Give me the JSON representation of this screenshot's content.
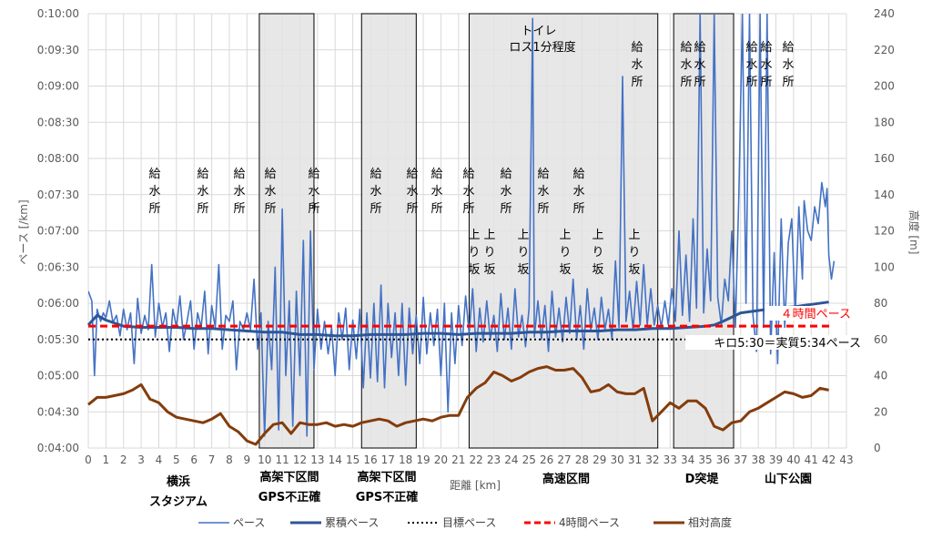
{
  "chart_data": {
    "type": "line",
    "xlabel": "距離 [km]",
    "ylabel_left": "ペース [/km]",
    "ylabel_right": "高度 [m]",
    "xlim": [
      0,
      43
    ],
    "ylim_left_seconds": [
      240,
      600
    ],
    "ylim_right": [
      0,
      240
    ],
    "grid": true,
    "legend_position": "bottom",
    "x_ticks": [
      "0",
      "1",
      "2",
      "3",
      "4",
      "5",
      "6",
      "7",
      "8",
      "9",
      "10",
      "11",
      "12",
      "13",
      "14",
      "15",
      "16",
      "17",
      "18",
      "19",
      "20",
      "21",
      "22",
      "23",
      "24",
      "25",
      "26",
      "27",
      "28",
      "29",
      "30",
      "31",
      "32",
      "33",
      "34",
      "35",
      "36",
      "37",
      "38",
      "39",
      "40",
      "41",
      "42",
      "43"
    ],
    "y_left_ticks": [
      "0:04:00",
      "0:04:30",
      "0:05:00",
      "0:05:30",
      "0:06:00",
      "0:06:30",
      "0:07:00",
      "0:07:30",
      "0:08:00",
      "0:08:30",
      "0:09:00",
      "0:09:30",
      "0:10:00"
    ],
    "y_right_ticks": [
      "0",
      "20",
      "40",
      "60",
      "80",
      "100",
      "120",
      "140",
      "160",
      "180",
      "200",
      "220",
      "240"
    ],
    "series": [
      {
        "name": "ペース",
        "color": "#4472C4",
        "style": "solid-thin"
      },
      {
        "name": "累積ペース",
        "color": "#2F5597",
        "style": "solid-thick",
        "x": [
          0,
          0.5,
          1,
          2,
          3,
          4,
          5,
          6,
          7,
          8,
          9,
          10,
          11,
          12,
          13,
          14,
          15,
          16,
          17,
          18,
          19,
          20,
          21,
          22,
          23,
          24,
          25,
          26,
          27,
          28,
          29,
          30,
          31,
          32,
          33,
          34,
          35,
          35.5,
          36,
          37,
          38,
          39,
          40,
          41,
          42
        ],
        "y_seconds": [
          342,
          350,
          346,
          341,
          340,
          340,
          340,
          339,
          339,
          338,
          337,
          336,
          336,
          334,
          334,
          333,
          333,
          334,
          334,
          334,
          335,
          335,
          334,
          335,
          335,
          335,
          336,
          336,
          337,
          337,
          337,
          338,
          338,
          339,
          339,
          340,
          341,
          342,
          345,
          352,
          354,
          356,
          357,
          359,
          361
        ]
      },
      {
        "name": "目標ペース",
        "color": "#000000",
        "style": "dotted",
        "value_seconds": 330
      },
      {
        "name": "4時間ペース",
        "color": "#FF0000",
        "style": "dashed",
        "value_seconds": 341
      },
      {
        "name": "相対高度",
        "color": "#843C0C",
        "style": "solid-thick",
        "x": [
          0,
          0.5,
          1,
          1.5,
          2,
          2.5,
          3,
          3.5,
          4,
          4.5,
          5,
          5.5,
          6,
          6.5,
          7,
          7.5,
          8,
          8.5,
          9,
          9.5,
          10,
          10.5,
          11,
          11.5,
          12,
          12.5,
          13,
          13.5,
          14,
          14.5,
          15,
          15.5,
          16,
          16.5,
          17,
          17.5,
          18,
          18.5,
          19,
          19.5,
          20,
          20.5,
          21,
          21.5,
          22,
          22.5,
          23,
          23.5,
          24,
          24.5,
          25,
          25.5,
          26,
          26.5,
          27,
          27.5,
          28,
          28.5,
          29,
          29.5,
          30,
          30.5,
          31,
          31.5,
          32,
          32.5,
          33,
          33.5,
          34,
          34.5,
          35,
          35.5,
          36,
          36.5,
          37,
          37.5,
          38,
          38.5,
          39,
          39.5,
          40,
          40.5,
          41,
          41.5,
          42
        ],
        "y": [
          24,
          28,
          28,
          29,
          30,
          32,
          35,
          27,
          25,
          20,
          17,
          16,
          15,
          14,
          16,
          19,
          12,
          9,
          4,
          2,
          8,
          13,
          14,
          8,
          14,
          13,
          13,
          14,
          12,
          13,
          12,
          14,
          15,
          16,
          15,
          12,
          14,
          15,
          16,
          15,
          17,
          18,
          18,
          28,
          33,
          36,
          42,
          40,
          37,
          39,
          42,
          44,
          45,
          43,
          43,
          44,
          39,
          31,
          32,
          35,
          31,
          30,
          30,
          33,
          15,
          20,
          25,
          22,
          26,
          26,
          22,
          12,
          10,
          14,
          15,
          20,
          22,
          25,
          28,
          31,
          30,
          28,
          29,
          33,
          32
        ]
      }
    ],
    "annotations": {
      "water": [
        "給水所",
        "給水所",
        "給水所",
        "給水所",
        "給水所",
        "給水所",
        "給水所",
        "給水所",
        "給水所",
        "給水所",
        "給水所",
        "給水所",
        "給水所",
        "給水所",
        "給水所",
        "給水所",
        "給水所",
        "給水所"
      ],
      "uphill": [
        "上り坂",
        "上り坂",
        "上り坂",
        "上り坂",
        "上り坂",
        "上り坂"
      ],
      "toilet_line1": "トイレ",
      "toilet_line2": "ロス1分程度",
      "four_hour_label": "４時間ペース",
      "target_label": "キロ5:30＝実質5:34ペース",
      "zones": [
        "横浜",
        "スタジアム",
        "高架下区間",
        "GPS不正確",
        "高架下区間",
        "GPS不正確",
        "高速区間",
        "D突堤",
        "山下公園"
      ]
    }
  }
}
